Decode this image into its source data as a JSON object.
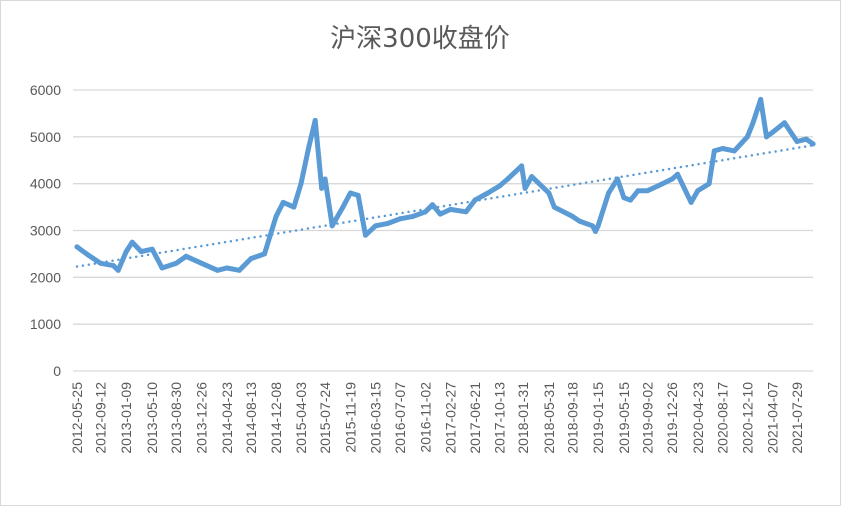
{
  "chart_data": {
    "type": "line",
    "title": "沪深300收盘价",
    "xlabel": "",
    "ylabel": "",
    "ylim": [
      0,
      6000
    ],
    "yticks": [
      0,
      1000,
      2000,
      3000,
      4000,
      5000,
      6000
    ],
    "grid": true,
    "legend": "none",
    "x_tick_labels": [
      "2012-05-25",
      "2012-09-12",
      "2013-01-09",
      "2013-05-10",
      "2013-08-30",
      "2013-12-26",
      "2014-04-23",
      "2014-08-13",
      "2014-12-08",
      "2015-04-03",
      "2015-07-24",
      "2015-11-19",
      "2016-03-15",
      "2016-07-07",
      "2016-11-02",
      "2017-02-27",
      "2017-06-21",
      "2017-10-13",
      "2018-01-31",
      "2018-05-31",
      "2018-09-18",
      "2019-01-15",
      "2019-05-15",
      "2019-09-02",
      "2019-12-26",
      "2020-04-23",
      "2020-08-17",
      "2020-12-10",
      "2021-04-07",
      "2021-07-29"
    ],
    "series": [
      {
        "color": "#5b9bd5",
        "points": [
          [
            "2012-05-25",
            2650
          ],
          [
            "2012-07-15",
            2480
          ],
          [
            "2012-09-12",
            2300
          ],
          [
            "2012-11-10",
            2250
          ],
          [
            "2012-12-03",
            2150
          ],
          [
            "2013-01-09",
            2550
          ],
          [
            "2013-02-06",
            2750
          ],
          [
            "2013-03-20",
            2550
          ],
          [
            "2013-05-10",
            2600
          ],
          [
            "2013-06-25",
            2200
          ],
          [
            "2013-08-30",
            2300
          ],
          [
            "2013-10-15",
            2450
          ],
          [
            "2013-12-26",
            2300
          ],
          [
            "2014-03-10",
            2150
          ],
          [
            "2014-04-23",
            2200
          ],
          [
            "2014-06-20",
            2150
          ],
          [
            "2014-08-13",
            2400
          ],
          [
            "2014-10-15",
            2500
          ],
          [
            "2014-12-08",
            3300
          ],
          [
            "2015-01-10",
            3600
          ],
          [
            "2015-03-01",
            3500
          ],
          [
            "2015-04-03",
            4000
          ],
          [
            "2015-05-10",
            4800
          ],
          [
            "2015-06-08",
            5350
          ],
          [
            "2015-07-08",
            3900
          ],
          [
            "2015-07-24",
            4100
          ],
          [
            "2015-08-26",
            3100
          ],
          [
            "2015-10-15",
            3500
          ],
          [
            "2015-11-19",
            3800
          ],
          [
            "2015-12-25",
            3750
          ],
          [
            "2016-01-28",
            2900
          ],
          [
            "2016-03-15",
            3100
          ],
          [
            "2016-05-10",
            3150
          ],
          [
            "2016-07-07",
            3250
          ],
          [
            "2016-09-05",
            3300
          ],
          [
            "2016-11-02",
            3400
          ],
          [
            "2016-12-05",
            3550
          ],
          [
            "2017-01-10",
            3350
          ],
          [
            "2017-02-27",
            3450
          ],
          [
            "2017-05-10",
            3400
          ],
          [
            "2017-06-21",
            3650
          ],
          [
            "2017-08-20",
            3800
          ],
          [
            "2017-10-13",
            3950
          ],
          [
            "2017-11-20",
            4100
          ],
          [
            "2018-01-24",
            4380
          ],
          [
            "2018-02-09",
            3900
          ],
          [
            "2018-03-12",
            4150
          ],
          [
            "2018-05-31",
            3800
          ],
          [
            "2018-06-25",
            3500
          ],
          [
            "2018-09-18",
            3300
          ],
          [
            "2018-10-20",
            3200
          ],
          [
            "2018-12-20",
            3100
          ],
          [
            "2019-01-03",
            2980
          ],
          [
            "2019-01-15",
            3100
          ],
          [
            "2019-03-05",
            3800
          ],
          [
            "2019-04-15",
            4100
          ],
          [
            "2019-05-15",
            3700
          ],
          [
            "2019-06-15",
            3650
          ],
          [
            "2019-07-20",
            3850
          ],
          [
            "2019-09-02",
            3850
          ],
          [
            "2019-10-20",
            3950
          ],
          [
            "2019-12-26",
            4100
          ],
          [
            "2020-01-20",
            4200
          ],
          [
            "2020-03-23",
            3600
          ],
          [
            "2020-04-23",
            3850
          ],
          [
            "2020-06-15",
            4000
          ],
          [
            "2020-07-09",
            4700
          ],
          [
            "2020-08-17",
            4750
          ],
          [
            "2020-10-10",
            4700
          ],
          [
            "2020-12-10",
            5000
          ],
          [
            "2021-01-05",
            5300
          ],
          [
            "2021-02-10",
            5800
          ],
          [
            "2021-03-09",
            5000
          ],
          [
            "2021-04-07",
            5100
          ],
          [
            "2021-06-01",
            5300
          ],
          [
            "2021-07-29",
            4900
          ],
          [
            "2021-09-10",
            4950
          ],
          [
            "2021-10-12",
            4850
          ]
        ]
      }
    ],
    "trendline": {
      "type": "linear",
      "style": "dotted",
      "color": "#5b9bd5",
      "start": [
        "2012-05-25",
        2230
      ],
      "end": [
        "2021-10-12",
        4820
      ]
    }
  }
}
